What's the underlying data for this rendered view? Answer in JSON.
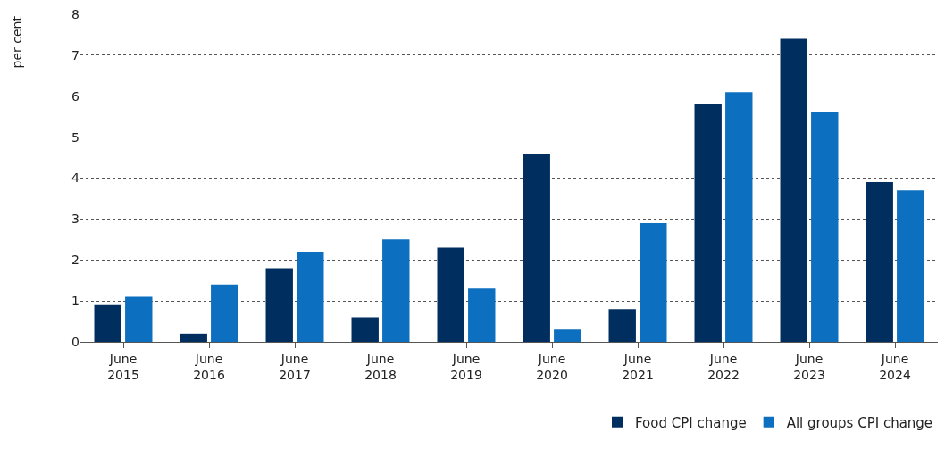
{
  "chart_data": {
    "type": "bar",
    "ylabel": "per cent",
    "categories": [
      "June 2015",
      "June 2016",
      "June 2017",
      "June 2018",
      "June 2019",
      "June 2020",
      "June 2021",
      "June 2022",
      "June 2023",
      "June 2024"
    ],
    "series": [
      {
        "name": "Food CPI change",
        "color": "#002f5f",
        "values": [
          0.9,
          0.2,
          1.8,
          0.6,
          2.3,
          4.6,
          0.8,
          5.8,
          7.4,
          3.9
        ]
      },
      {
        "name": "All groups CPI change",
        "color": "#0c6fbf",
        "values": [
          1.1,
          1.4,
          2.2,
          2.5,
          1.3,
          0.3,
          2.9,
          6.1,
          5.6,
          3.7
        ]
      }
    ],
    "ylim": [
      0,
      8
    ],
    "yticks": [
      0,
      1,
      2,
      3,
      4,
      5,
      6,
      7,
      8
    ],
    "grid": "y",
    "legend": "bottom right"
  }
}
